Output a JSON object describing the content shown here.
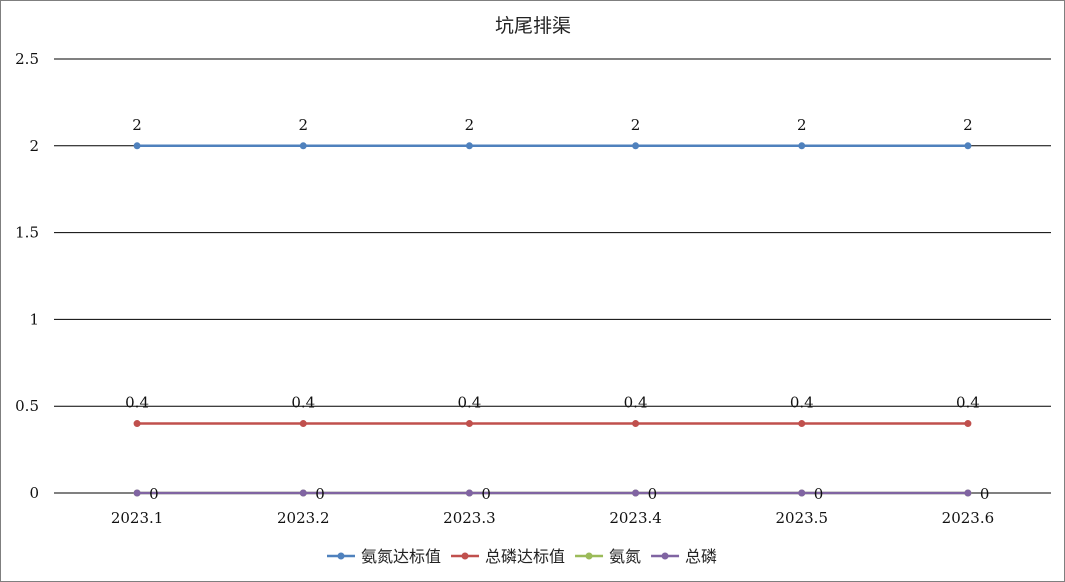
{
  "chart_data": {
    "type": "line",
    "title": "坑尾排渠",
    "xlabel": "",
    "ylabel": "",
    "categories": [
      "2023.1",
      "2023.2",
      "2023.3",
      "2023.4",
      "2023.5",
      "2023.6"
    ],
    "ylim": [
      0,
      2.5
    ],
    "yticks": [
      "0",
      "0.5",
      "1",
      "1.5",
      "2",
      "2.5"
    ],
    "grid": true,
    "legend_position": "bottom",
    "series": [
      {
        "name": "氨氮达标值",
        "color": "#4f81bd",
        "values": [
          2,
          2,
          2,
          2,
          2,
          2
        ],
        "labels": [
          "2",
          "2",
          "2",
          "2",
          "2",
          "2"
        ]
      },
      {
        "name": "总磷达标值",
        "color": "#c0504d",
        "values": [
          0.4,
          0.4,
          0.4,
          0.4,
          0.4,
          0.4
        ],
        "labels": [
          "0.4",
          "0.4",
          "0.4",
          "0.4",
          "0.4",
          "0.4"
        ]
      },
      {
        "name": "氨氮",
        "color": "#9bbb59",
        "values": [
          0,
          0,
          0,
          0,
          0,
          0
        ],
        "labels": [
          "0",
          "0",
          "0",
          "0",
          "0",
          "0"
        ]
      },
      {
        "name": "总磷",
        "color": "#8064a2",
        "values": [
          0,
          0,
          0,
          0,
          0,
          0
        ],
        "labels": []
      }
    ]
  }
}
